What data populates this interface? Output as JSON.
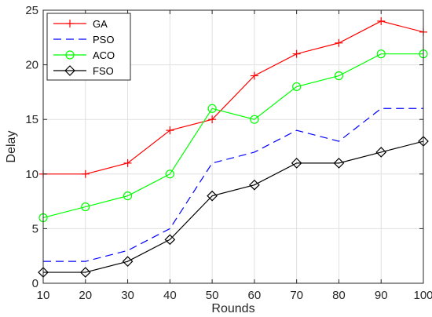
{
  "chart_data": {
    "type": "line",
    "title": "",
    "xlabel": "Rounds",
    "ylabel": "Delay",
    "x": [
      10,
      20,
      30,
      40,
      50,
      60,
      70,
      80,
      90,
      100
    ],
    "xlim": [
      10,
      100
    ],
    "ylim": [
      0,
      25
    ],
    "xticks": [
      10,
      20,
      30,
      40,
      50,
      60,
      70,
      80,
      90,
      100
    ],
    "yticks": [
      0,
      5,
      10,
      15,
      20,
      25
    ],
    "grid": true,
    "legend_position": "top-left",
    "series": [
      {
        "name": "GA",
        "values": [
          10,
          10,
          11,
          14,
          15,
          19,
          21,
          22,
          24,
          23
        ],
        "color": "#ff0000",
        "line_style": "solid",
        "marker": "plus"
      },
      {
        "name": "PSO",
        "values": [
          2,
          2,
          3,
          5,
          11,
          12,
          14,
          13,
          16,
          16
        ],
        "color": "#0000ff",
        "line_style": "dashed",
        "marker": "none"
      },
      {
        "name": "ACO",
        "values": [
          6,
          7,
          8,
          10,
          16,
          15,
          18,
          19,
          21,
          21
        ],
        "color": "#00ff00",
        "line_style": "solid",
        "marker": "circle"
      },
      {
        "name": "FSO",
        "values": [
          1,
          1,
          2,
          4,
          8,
          9,
          11,
          11,
          12,
          13
        ],
        "color": "#000000",
        "line_style": "solid",
        "marker": "diamond"
      }
    ]
  }
}
